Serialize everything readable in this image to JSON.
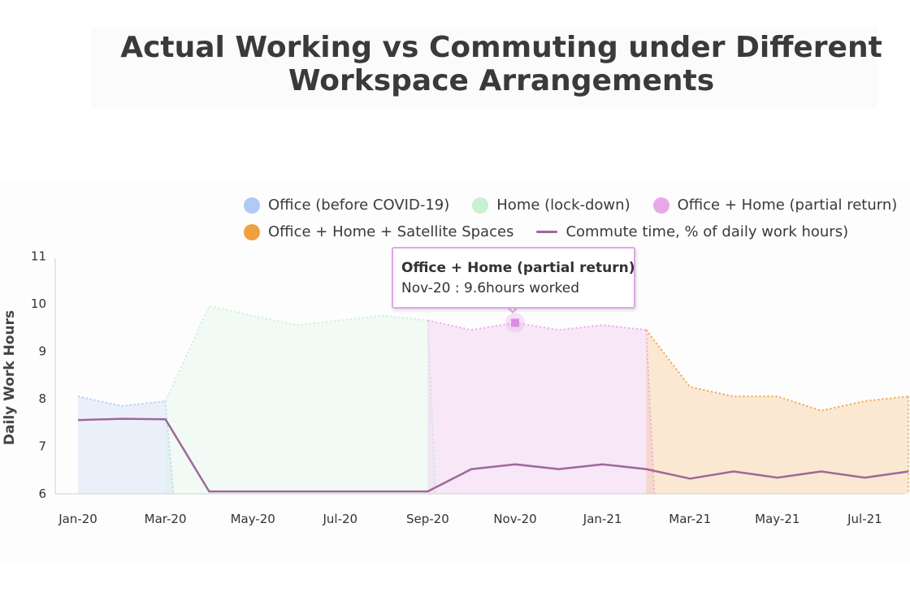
{
  "title_line1": "Actual Working vs Commuting under Different",
  "title_line2": "Workspace Arrangements",
  "legend": {
    "items": [
      {
        "label": "Office (before COVID-19)",
        "color": "#aecbf5",
        "kind": "dot"
      },
      {
        "label": "Home (lock-down)",
        "color": "#c8f0d4",
        "kind": "dot"
      },
      {
        "label": "Office + Home (partial return)",
        "color": "#e8a8e8",
        "kind": "dot"
      },
      {
        "label": "Office + Home + Satellite Spaces",
        "color": "#f0a040",
        "kind": "dot"
      },
      {
        "label": "Commute time, % of daily work hours)",
        "color": "#a06898",
        "kind": "line"
      }
    ]
  },
  "tooltip": {
    "title": "Office + Home (partial return)",
    "body": "Nov-20 : 9.6hours worked"
  },
  "chart_data": {
    "type": "area",
    "ylabel": "Daily Work Hours",
    "xlabel": "",
    "ylim": [
      6,
      11
    ],
    "yticks": [
      6,
      7,
      8,
      9,
      10,
      11
    ],
    "x": [
      "Jan-20",
      "Feb-20",
      "Mar-20",
      "Apr-20",
      "May-20",
      "Jun-20",
      "Jul-20",
      "Aug-20",
      "Sep-20",
      "Oct-20",
      "Nov-20",
      "Dec-20",
      "Jan-21",
      "Feb-21",
      "Mar-21",
      "Apr-21",
      "May-21",
      "Jun-21",
      "Jul-21",
      "Aug-21"
    ],
    "xtick_labels": [
      "Jan-20",
      "Mar-20",
      "May-20",
      "Jul-20",
      "Sep-20",
      "Nov-20",
      "Jan-21",
      "Mar-21",
      "May-21",
      "Jul-21"
    ],
    "series": [
      {
        "name": "Office (before COVID-19)",
        "color": "#aecbf5",
        "x": [
          "Jan-20",
          "Feb-20",
          "Mar-20"
        ],
        "values": [
          8.05,
          7.85,
          7.95
        ]
      },
      {
        "name": "Home (lock-down)",
        "color": "#c8f0d4",
        "x": [
          "Mar-20",
          "Apr-20",
          "May-20",
          "Jun-20",
          "Jul-20",
          "Aug-20",
          "Sep-20"
        ],
        "values": [
          7.95,
          9.95,
          9.75,
          9.55,
          9.65,
          9.75,
          9.65
        ]
      },
      {
        "name": "Office + Home (partial return)",
        "color": "#e8a8e8",
        "x": [
          "Sep-20",
          "Oct-20",
          "Nov-20",
          "Dec-20",
          "Jan-21",
          "Feb-21"
        ],
        "values": [
          9.65,
          9.45,
          9.6,
          9.45,
          9.55,
          9.45
        ]
      },
      {
        "name": "Office + Home + Satellite Spaces",
        "color": "#f0a040",
        "x": [
          "Feb-21",
          "Mar-21",
          "Apr-21",
          "May-21",
          "Jun-21",
          "Jul-21",
          "Aug-21"
        ],
        "values": [
          9.45,
          8.25,
          8.05,
          8.05,
          7.75,
          7.95,
          8.05
        ]
      },
      {
        "name": "Commute time, % of daily work hours)",
        "color": "#a06898",
        "kind": "line",
        "x": [
          "Jan-20",
          "Feb-20",
          "Mar-20",
          "Apr-20",
          "May-20",
          "Jun-20",
          "Jul-20",
          "Aug-20",
          "Sep-20",
          "Oct-20",
          "Nov-20",
          "Dec-20",
          "Jan-21",
          "Feb-21",
          "Mar-21",
          "Apr-21",
          "May-21",
          "Jun-21",
          "Jul-21",
          "Aug-21"
        ],
        "values": [
          7.55,
          7.58,
          7.57,
          6.05,
          6.05,
          6.05,
          6.05,
          6.05,
          6.05,
          6.52,
          6.62,
          6.52,
          6.62,
          6.52,
          6.32,
          6.47,
          6.34,
          6.47,
          6.34,
          6.47
        ]
      }
    ],
    "highlight": {
      "series": "Office + Home (partial return)",
      "x": "Nov-20",
      "value": 9.6
    },
    "grid": false
  }
}
